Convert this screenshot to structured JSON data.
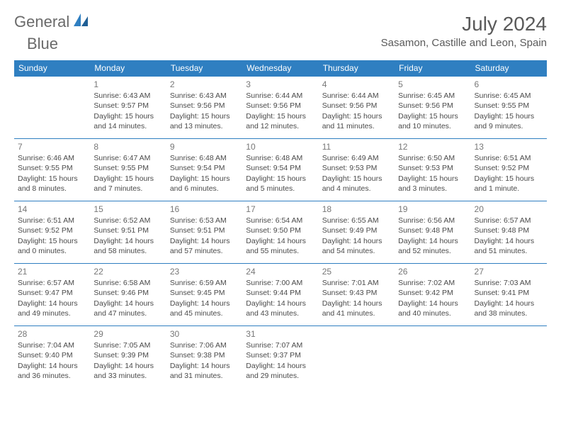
{
  "brand": {
    "word1": "General",
    "word2": "Blue"
  },
  "title": "July 2024",
  "location": "Sasamon, Castille and Leon, Spain",
  "colors": {
    "accent": "#2f7fc1",
    "text": "#4a4a4a",
    "heading": "#5a5a5a",
    "background": "#ffffff"
  },
  "weekdays": [
    "Sunday",
    "Monday",
    "Tuesday",
    "Wednesday",
    "Thursday",
    "Friday",
    "Saturday"
  ],
  "blanks_before": 0,
  "days": [
    null,
    {
      "n": "1",
      "sr": "6:43 AM",
      "ss": "9:57 PM",
      "dl": "15 hours and 14 minutes."
    },
    {
      "n": "2",
      "sr": "6:43 AM",
      "ss": "9:56 PM",
      "dl": "15 hours and 13 minutes."
    },
    {
      "n": "3",
      "sr": "6:44 AM",
      "ss": "9:56 PM",
      "dl": "15 hours and 12 minutes."
    },
    {
      "n": "4",
      "sr": "6:44 AM",
      "ss": "9:56 PM",
      "dl": "15 hours and 11 minutes."
    },
    {
      "n": "5",
      "sr": "6:45 AM",
      "ss": "9:56 PM",
      "dl": "15 hours and 10 minutes."
    },
    {
      "n": "6",
      "sr": "6:45 AM",
      "ss": "9:55 PM",
      "dl": "15 hours and 9 minutes."
    },
    {
      "n": "7",
      "sr": "6:46 AM",
      "ss": "9:55 PM",
      "dl": "15 hours and 8 minutes."
    },
    {
      "n": "8",
      "sr": "6:47 AM",
      "ss": "9:55 PM",
      "dl": "15 hours and 7 minutes."
    },
    {
      "n": "9",
      "sr": "6:48 AM",
      "ss": "9:54 PM",
      "dl": "15 hours and 6 minutes."
    },
    {
      "n": "10",
      "sr": "6:48 AM",
      "ss": "9:54 PM",
      "dl": "15 hours and 5 minutes."
    },
    {
      "n": "11",
      "sr": "6:49 AM",
      "ss": "9:53 PM",
      "dl": "15 hours and 4 minutes."
    },
    {
      "n": "12",
      "sr": "6:50 AM",
      "ss": "9:53 PM",
      "dl": "15 hours and 3 minutes."
    },
    {
      "n": "13",
      "sr": "6:51 AM",
      "ss": "9:52 PM",
      "dl": "15 hours and 1 minute."
    },
    {
      "n": "14",
      "sr": "6:51 AM",
      "ss": "9:52 PM",
      "dl": "15 hours and 0 minutes."
    },
    {
      "n": "15",
      "sr": "6:52 AM",
      "ss": "9:51 PM",
      "dl": "14 hours and 58 minutes."
    },
    {
      "n": "16",
      "sr": "6:53 AM",
      "ss": "9:51 PM",
      "dl": "14 hours and 57 minutes."
    },
    {
      "n": "17",
      "sr": "6:54 AM",
      "ss": "9:50 PM",
      "dl": "14 hours and 55 minutes."
    },
    {
      "n": "18",
      "sr": "6:55 AM",
      "ss": "9:49 PM",
      "dl": "14 hours and 54 minutes."
    },
    {
      "n": "19",
      "sr": "6:56 AM",
      "ss": "9:48 PM",
      "dl": "14 hours and 52 minutes."
    },
    {
      "n": "20",
      "sr": "6:57 AM",
      "ss": "9:48 PM",
      "dl": "14 hours and 51 minutes."
    },
    {
      "n": "21",
      "sr": "6:57 AM",
      "ss": "9:47 PM",
      "dl": "14 hours and 49 minutes."
    },
    {
      "n": "22",
      "sr": "6:58 AM",
      "ss": "9:46 PM",
      "dl": "14 hours and 47 minutes."
    },
    {
      "n": "23",
      "sr": "6:59 AM",
      "ss": "9:45 PM",
      "dl": "14 hours and 45 minutes."
    },
    {
      "n": "24",
      "sr": "7:00 AM",
      "ss": "9:44 PM",
      "dl": "14 hours and 43 minutes."
    },
    {
      "n": "25",
      "sr": "7:01 AM",
      "ss": "9:43 PM",
      "dl": "14 hours and 41 minutes."
    },
    {
      "n": "26",
      "sr": "7:02 AM",
      "ss": "9:42 PM",
      "dl": "14 hours and 40 minutes."
    },
    {
      "n": "27",
      "sr": "7:03 AM",
      "ss": "9:41 PM",
      "dl": "14 hours and 38 minutes."
    },
    {
      "n": "28",
      "sr": "7:04 AM",
      "ss": "9:40 PM",
      "dl": "14 hours and 36 minutes."
    },
    {
      "n": "29",
      "sr": "7:05 AM",
      "ss": "9:39 PM",
      "dl": "14 hours and 33 minutes."
    },
    {
      "n": "30",
      "sr": "7:06 AM",
      "ss": "9:38 PM",
      "dl": "14 hours and 31 minutes."
    },
    {
      "n": "31",
      "sr": "7:07 AM",
      "ss": "9:37 PM",
      "dl": "14 hours and 29 minutes."
    }
  ],
  "labels": {
    "sunrise": "Sunrise:",
    "sunset": "Sunset:",
    "daylight": "Daylight:"
  }
}
